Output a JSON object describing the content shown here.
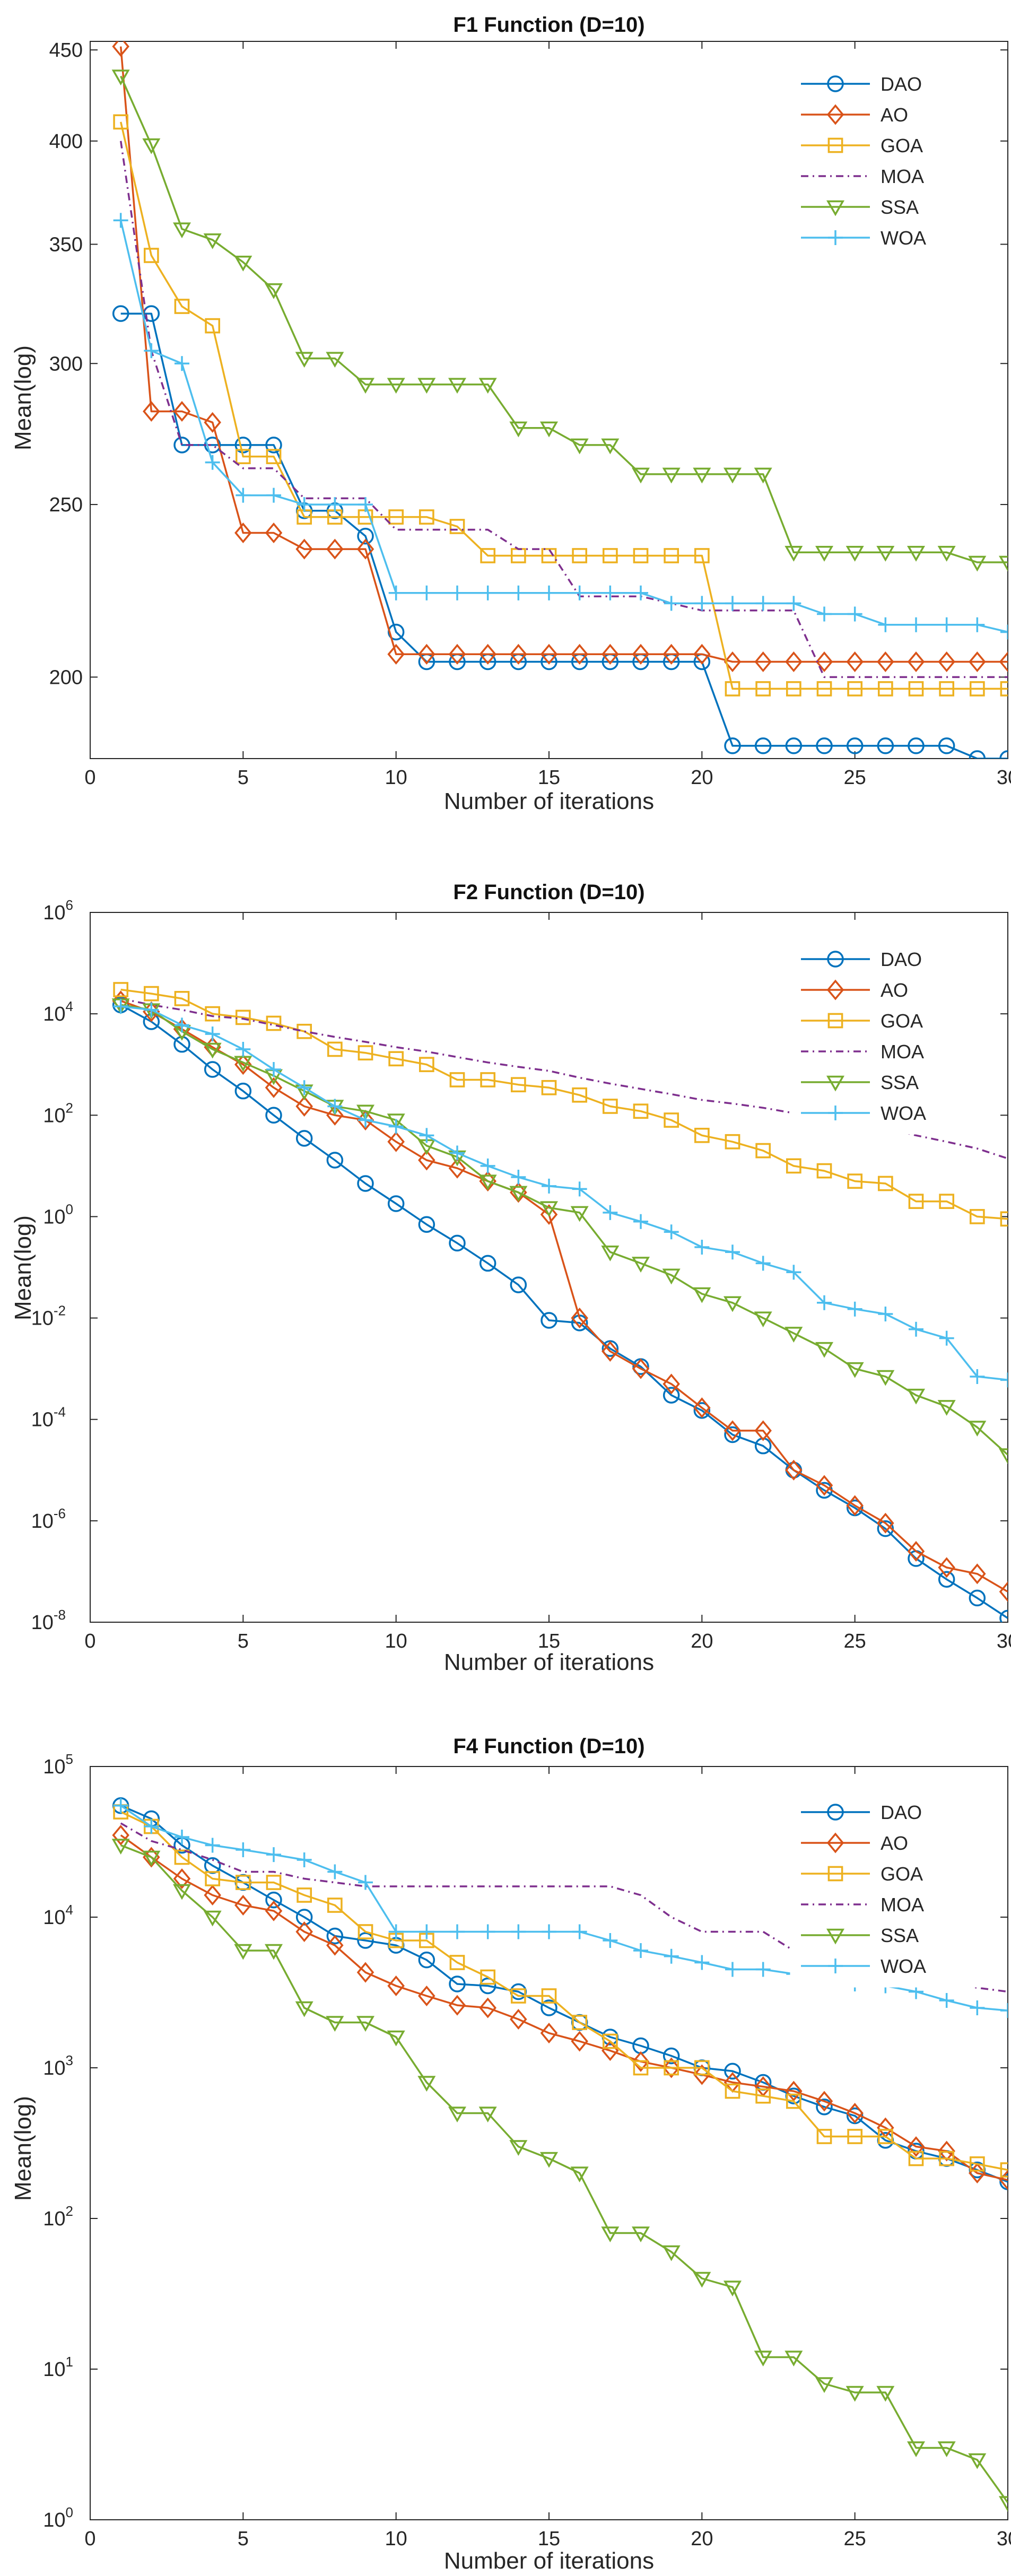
{
  "chart_data": [
    {
      "type": "line",
      "title": "F1 Function (D=10)",
      "xlabel": "Number of iterations",
      "ylabel": "Mean(log)",
      "yscale": "log",
      "xlim": [
        0,
        30
      ],
      "ylim": [
        180,
        455
      ],
      "xticks": [
        "0",
        "5",
        "10",
        "15",
        "20",
        "25",
        "30"
      ],
      "yticks": [
        {
          "v": 200,
          "label": "200"
        },
        {
          "v": 250,
          "label": "250"
        },
        {
          "v": 300,
          "label": "300"
        },
        {
          "v": 350,
          "label": "350"
        },
        {
          "v": 400,
          "label": "400"
        },
        {
          "v": 450,
          "label": "450"
        }
      ],
      "legend_position": "top-right",
      "x": [
        1,
        2,
        3,
        4,
        5,
        6,
        7,
        8,
        9,
        10,
        11,
        12,
        13,
        14,
        15,
        16,
        17,
        18,
        19,
        20,
        21,
        22,
        23,
        24,
        25,
        26,
        27,
        28,
        29,
        30
      ],
      "series": [
        {
          "name": "DAO",
          "color": "#0072BD",
          "marker": "circle",
          "dash": "",
          "values": [
            320,
            320,
            270,
            270,
            270,
            270,
            248,
            248,
            240,
            212,
            204,
            204,
            204,
            204,
            204,
            204,
            204,
            204,
            204,
            204,
            183,
            183,
            183,
            183,
            183,
            183,
            183,
            183,
            180,
            180
          ]
        },
        {
          "name": "AO",
          "color": "#D95319",
          "marker": "diamond",
          "dash": "",
          "values": [
            452,
            282,
            282,
            278,
            241,
            241,
            236,
            236,
            236,
            206,
            206,
            206,
            206,
            206,
            206,
            206,
            206,
            206,
            206,
            206,
            204,
            204,
            204,
            204,
            204,
            204,
            204,
            204,
            204,
            204
          ]
        },
        {
          "name": "GOA",
          "color": "#EDB120",
          "marker": "square",
          "dash": "",
          "values": [
            410,
            345,
            323,
            315,
            266,
            266,
            246,
            246,
            246,
            246,
            246,
            243,
            234,
            234,
            234,
            234,
            234,
            234,
            234,
            234,
            197,
            197,
            197,
            197,
            197,
            197,
            197,
            197,
            197,
            197
          ]
        },
        {
          "name": "MOA",
          "color": "#7E2F8E",
          "marker": "none",
          "dash": "14 8 3 8",
          "values": [
            400,
            305,
            270,
            270,
            262,
            262,
            252,
            252,
            252,
            242,
            242,
            242,
            242,
            236,
            236,
            222,
            222,
            222,
            220,
            218,
            218,
            218,
            218,
            200,
            200,
            200,
            200,
            200,
            200,
            200
          ]
        },
        {
          "name": "SSA",
          "color": "#77AC30",
          "marker": "triangle-down",
          "dash": "",
          "values": [
            435,
            398,
            357,
            352,
            342,
            330,
            302,
            302,
            292,
            292,
            292,
            292,
            292,
            276,
            276,
            270,
            270,
            260,
            260,
            260,
            260,
            260,
            235,
            235,
            235,
            235,
            235,
            235,
            232,
            232
          ]
        },
        {
          "name": "WOA",
          "color": "#4DBEEE",
          "marker": "plus",
          "dash": "",
          "values": [
            361,
            305,
            300,
            264,
            253,
            253,
            250,
            250,
            250,
            223,
            223,
            223,
            223,
            223,
            223,
            223,
            223,
            223,
            220,
            220,
            220,
            220,
            220,
            217,
            217,
            214,
            214,
            214,
            214,
            212
          ]
        }
      ]
    },
    {
      "type": "line",
      "title": "F2 Function (D=10)",
      "xlabel": "Number of iterations",
      "ylabel": "Mean(log)",
      "yscale": "log",
      "xlim": [
        0,
        30
      ],
      "ylim": [
        1e-08,
        1000000.0
      ],
      "xticks": [
        "0",
        "5",
        "10",
        "15",
        "20",
        "25",
        "30"
      ],
      "yticks": [
        {
          "v": 1e-08,
          "base": "10",
          "exp": "-8"
        },
        {
          "v": 1e-06,
          "base": "10",
          "exp": "-6"
        },
        {
          "v": 0.0001,
          "base": "10",
          "exp": "-4"
        },
        {
          "v": 0.01,
          "base": "10",
          "exp": "-2"
        },
        {
          "v": 1,
          "base": "10",
          "exp": "0"
        },
        {
          "v": 100,
          "base": "10",
          "exp": "2"
        },
        {
          "v": 10000,
          "base": "10",
          "exp": "4"
        },
        {
          "v": 1000000,
          "base": "10",
          "exp": "6"
        }
      ],
      "legend_position": "top-right",
      "x": [
        1,
        2,
        3,
        4,
        5,
        6,
        7,
        8,
        9,
        10,
        11,
        12,
        13,
        14,
        15,
        16,
        17,
        18,
        19,
        20,
        21,
        22,
        23,
        24,
        25,
        26,
        27,
        28,
        29,
        30
      ],
      "series": [
        {
          "name": "DAO",
          "color": "#0072BD",
          "marker": "circle",
          "dash": "",
          "values": [
            15000,
            7000,
            2500,
            800,
            300,
            100,
            35,
            13,
            4.5,
            1.8,
            0.7,
            0.3,
            0.12,
            0.045,
            0.009,
            0.008,
            0.0025,
            0.0011,
            0.0003,
            0.00015,
            5e-05,
            3e-05,
            1e-05,
            4e-06,
            1.8e-06,
            7e-07,
            1.8e-07,
            7e-08,
            3e-08,
            1.2e-08
          ]
        },
        {
          "name": "AO",
          "color": "#D95319",
          "marker": "diamond",
          "dash": "",
          "values": [
            18000,
            11000,
            5000,
            2200,
            1000,
            350,
            150,
            100,
            80,
            30,
            13,
            9,
            5,
            3,
            1.1,
            0.01,
            0.0022,
            0.001,
            0.0005,
            0.00017,
            6e-05,
            6e-05,
            1e-05,
            5e-06,
            2e-06,
            9e-07,
            2.5e-07,
            1.2e-07,
            9e-08,
            4e-08
          ]
        },
        {
          "name": "GOA",
          "color": "#EDB120",
          "marker": "square",
          "dash": "",
          "values": [
            30000,
            25000,
            20000,
            10000,
            8500,
            6500,
            4500,
            2000,
            1700,
            1300,
            1000,
            500,
            500,
            400,
            350,
            250,
            150,
            120,
            80,
            40,
            30,
            20,
            10,
            8,
            5,
            4.5,
            2,
            2,
            1,
            0.9
          ]
        },
        {
          "name": "MOA",
          "color": "#7E2F8E",
          "marker": "none",
          "dash": "14 8 3 8",
          "values": [
            20000,
            15000,
            12000,
            9000,
            8000,
            6000,
            4500,
            3500,
            2800,
            2200,
            1800,
            1400,
            1100,
            900,
            750,
            550,
            420,
            330,
            260,
            200,
            170,
            140,
            110,
            85,
            70,
            55,
            40,
            30,
            22,
            14
          ]
        },
        {
          "name": "SSA",
          "color": "#77AC30",
          "marker": "triangle-down",
          "dash": "",
          "values": [
            15000,
            12000,
            4500,
            2000,
            1100,
            600,
            300,
            150,
            120,
            80,
            25,
            15,
            5,
            3,
            1.5,
            1.2,
            0.2,
            0.12,
            0.07,
            0.03,
            0.02,
            0.01,
            0.005,
            0.0025,
            0.001,
            0.0007,
            0.0003,
            0.00018,
            7e-05,
            2e-05
          ]
        },
        {
          "name": "WOA",
          "color": "#4DBEEE",
          "marker": "plus",
          "dash": "",
          "values": [
            14000,
            12000,
            6000,
            4000,
            2000,
            800,
            350,
            150,
            80,
            60,
            40,
            18,
            10,
            6,
            4,
            3.5,
            1.2,
            0.8,
            0.5,
            0.25,
            0.2,
            0.12,
            0.08,
            0.02,
            0.015,
            0.012,
            0.006,
            0.004,
            0.0007,
            0.0006
          ]
        }
      ]
    },
    {
      "type": "line",
      "title": "F4 Function (D=10)",
      "xlabel": "Number of iterations",
      "ylabel": "Mean(log)",
      "yscale": "log",
      "xlim": [
        0,
        30
      ],
      "ylim": [
        1,
        100000
      ],
      "xticks": [
        "0",
        "5",
        "10",
        "15",
        "20",
        "25",
        "30"
      ],
      "yticks": [
        {
          "v": 1,
          "base": "10",
          "exp": "0"
        },
        {
          "v": 10,
          "base": "10",
          "exp": "1"
        },
        {
          "v": 100,
          "base": "10",
          "exp": "2"
        },
        {
          "v": 1000,
          "base": "10",
          "exp": "3"
        },
        {
          "v": 10000,
          "base": "10",
          "exp": "4"
        },
        {
          "v": 100000,
          "base": "10",
          "exp": "5"
        }
      ],
      "legend_position": "top-right",
      "x": [
        1,
        2,
        3,
        4,
        5,
        6,
        7,
        8,
        9,
        10,
        11,
        12,
        13,
        14,
        15,
        16,
        17,
        18,
        19,
        20,
        21,
        22,
        23,
        24,
        25,
        26,
        27,
        28,
        29,
        30
      ],
      "series": [
        {
          "name": "DAO",
          "color": "#0072BD",
          "marker": "circle",
          "dash": "",
          "values": [
            55000,
            45000,
            30000,
            22000,
            17000,
            13000,
            10000,
            7500,
            7000,
            6500,
            5200,
            3600,
            3500,
            3200,
            2500,
            2000,
            1600,
            1400,
            1200,
            1000,
            950,
            800,
            650,
            550,
            480,
            330,
            280,
            250,
            210,
            175
          ]
        },
        {
          "name": "AO",
          "color": "#D95319",
          "marker": "diamond",
          "dash": "",
          "values": [
            35000,
            25000,
            18000,
            14000,
            12000,
            11000,
            8000,
            6500,
            4300,
            3500,
            3000,
            2600,
            2500,
            2100,
            1700,
            1500,
            1300,
            1100,
            1000,
            900,
            800,
            750,
            700,
            600,
            500,
            400,
            300,
            280,
            200,
            180
          ]
        },
        {
          "name": "GOA",
          "color": "#EDB120",
          "marker": "square",
          "dash": "",
          "values": [
            50000,
            40000,
            25000,
            18000,
            17000,
            17000,
            14000,
            12000,
            8000,
            7000,
            7000,
            5000,
            4000,
            3000,
            3000,
            2000,
            1500,
            1000,
            1000,
            1000,
            700,
            650,
            600,
            350,
            350,
            350,
            250,
            250,
            230,
            210
          ]
        },
        {
          "name": "MOA",
          "color": "#7E2F8E",
          "marker": "none",
          "dash": "14 8 3 8",
          "values": [
            42000,
            32000,
            28000,
            24000,
            20000,
            20000,
            18000,
            17000,
            16000,
            16000,
            16000,
            16000,
            16000,
            16000,
            16000,
            16000,
            16000,
            14000,
            10000,
            8000,
            8000,
            8000,
            6000,
            5000,
            4800,
            4500,
            4000,
            3700,
            3400,
            3200
          ]
        },
        {
          "name": "SSA",
          "color": "#77AC30",
          "marker": "triangle-down",
          "dash": "",
          "values": [
            30000,
            25000,
            15000,
            10000,
            6000,
            6000,
            2500,
            2000,
            2000,
            1600,
            800,
            500,
            500,
            300,
            250,
            200,
            80,
            80,
            60,
            40,
            35,
            12,
            12,
            8,
            7,
            7,
            3,
            3,
            2.5,
            1.3
          ]
        },
        {
          "name": "WOA",
          "color": "#4DBEEE",
          "marker": "plus",
          "dash": "",
          "values": [
            55000,
            40000,
            34000,
            30000,
            28000,
            26000,
            24000,
            20000,
            17000,
            8000,
            8000,
            8000,
            8000,
            8000,
            8000,
            8000,
            7000,
            6000,
            5500,
            5000,
            4500,
            4500,
            4200,
            4000,
            3600,
            3500,
            3200,
            2800,
            2500,
            2400
          ]
        }
      ]
    }
  ]
}
